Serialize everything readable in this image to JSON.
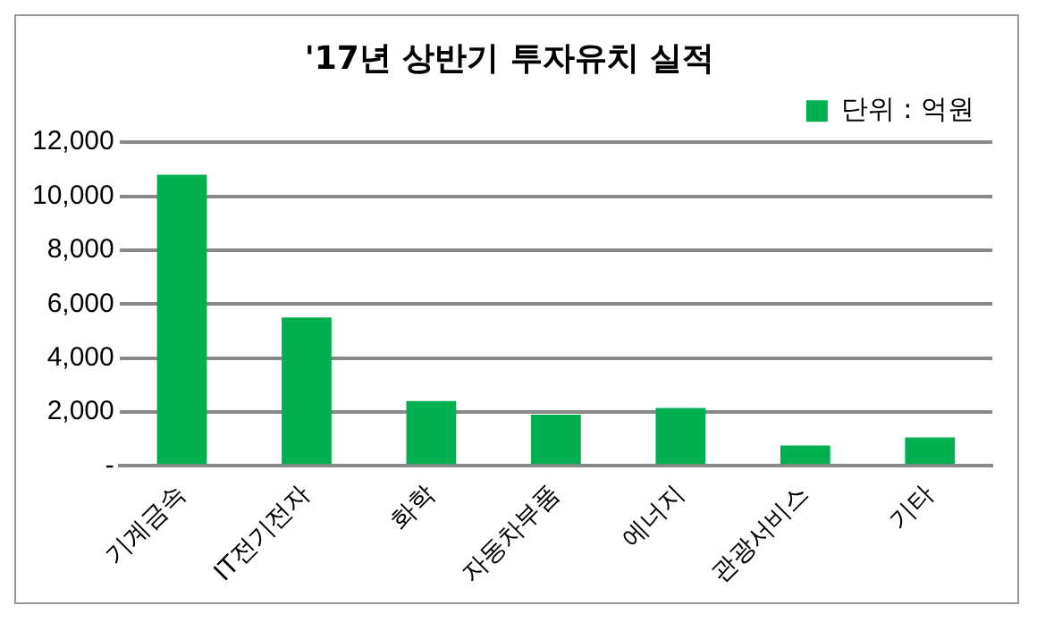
{
  "chart_data": {
    "type": "bar",
    "title": "'17년 상반기 투자유치 실적",
    "categories": [
      "기계금속",
      "IT전기전자",
      "화학",
      "자동차부품",
      "에너지",
      "관광서비스",
      "기타"
    ],
    "series": [
      {
        "name": "단위 : 억원",
        "color": "#00b050",
        "values": [
          10800,
          5500,
          2400,
          1900,
          2150,
          750,
          1050
        ]
      }
    ],
    "ylim": [
      0,
      12000
    ],
    "yticks": [
      {
        "value": 0,
        "label": "-"
      },
      {
        "value": 2000,
        "label": "2,000"
      },
      {
        "value": 4000,
        "label": "4,000"
      },
      {
        "value": 6000,
        "label": "6,000"
      },
      {
        "value": 8000,
        "label": "8,000"
      },
      {
        "value": 10000,
        "label": "10,000"
      },
      {
        "value": 12000,
        "label": "12,000"
      }
    ],
    "grid": "y",
    "legend": "top right"
  }
}
